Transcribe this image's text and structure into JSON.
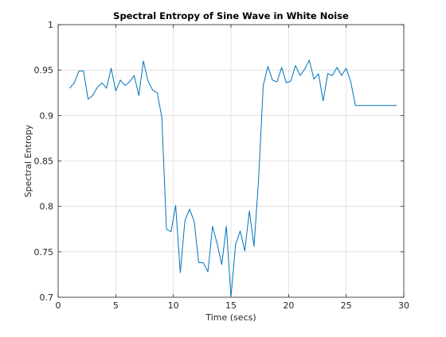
{
  "figure": {
    "background": "#ffffff"
  },
  "chart_data": {
    "type": "line",
    "title": "Spectral Entropy of Sine Wave in White Noise",
    "xlabel": "Time (secs)",
    "ylabel": "Spectral Entropy",
    "xlim": [
      0,
      30
    ],
    "ylim": [
      0.7,
      1
    ],
    "xticks": [
      0,
      5,
      10,
      15,
      20,
      25,
      30
    ],
    "xtick_labels": [
      "0",
      "5",
      "10",
      "15",
      "20",
      "25",
      "30"
    ],
    "yticks": [
      0.7,
      0.75,
      0.8,
      0.85,
      0.9,
      0.95,
      1
    ],
    "ytick_labels": [
      "0.7",
      "0.75",
      "0.8",
      "0.85",
      "0.9",
      "0.95",
      "1"
    ],
    "grid": true,
    "legend": false,
    "line_color": "#0072bd",
    "series": [
      {
        "x": [
          1.0,
          1.4,
          1.8,
          2.2,
          2.6,
          3.0,
          3.4,
          3.8,
          4.2,
          4.6,
          5.0,
          5.4,
          5.8,
          6.2,
          6.6,
          7.0,
          7.4,
          7.8,
          8.2,
          8.6,
          9.0,
          9.4,
          9.8,
          10.2,
          10.6,
          11.0,
          11.4,
          11.8,
          12.2,
          12.6,
          13.0,
          13.4,
          13.8,
          14.2,
          14.6,
          15.0,
          15.4,
          15.8,
          16.2,
          16.6,
          17.0,
          17.4,
          17.8,
          18.2,
          18.6,
          19.0,
          19.4,
          19.8,
          20.2,
          20.6,
          21.0,
          21.4,
          21.8,
          22.2,
          22.6,
          23.0,
          23.4,
          23.8,
          24.2,
          24.6,
          25.0,
          25.4,
          25.8,
          26.2,
          26.6,
          27.0,
          27.4,
          27.8,
          28.2,
          28.6,
          29.0,
          29.4
        ],
        "y": [
          0.93,
          0.936,
          0.949,
          0.949,
          0.918,
          0.922,
          0.931,
          0.936,
          0.93,
          0.952,
          0.927,
          0.939,
          0.933,
          0.937,
          0.944,
          0.922,
          0.96,
          0.938,
          0.928,
          0.925,
          0.898,
          0.775,
          0.772,
          0.801,
          0.727,
          0.784,
          0.797,
          0.784,
          0.738,
          0.738,
          0.728,
          0.778,
          0.759,
          0.736,
          0.778,
          0.7,
          0.758,
          0.773,
          0.751,
          0.795,
          0.756,
          0.83,
          0.933,
          0.954,
          0.939,
          0.937,
          0.953,
          0.936,
          0.938,
          0.955,
          0.944,
          0.951,
          0.961,
          0.94,
          0.946,
          0.916,
          0.946,
          0.944,
          0.953,
          0.944,
          0.952,
          0.937,
          0.911,
          0.911,
          0.911,
          0.911,
          0.911,
          0.911,
          0.911,
          0.911,
          0.911,
          0.911
        ]
      }
    ]
  }
}
